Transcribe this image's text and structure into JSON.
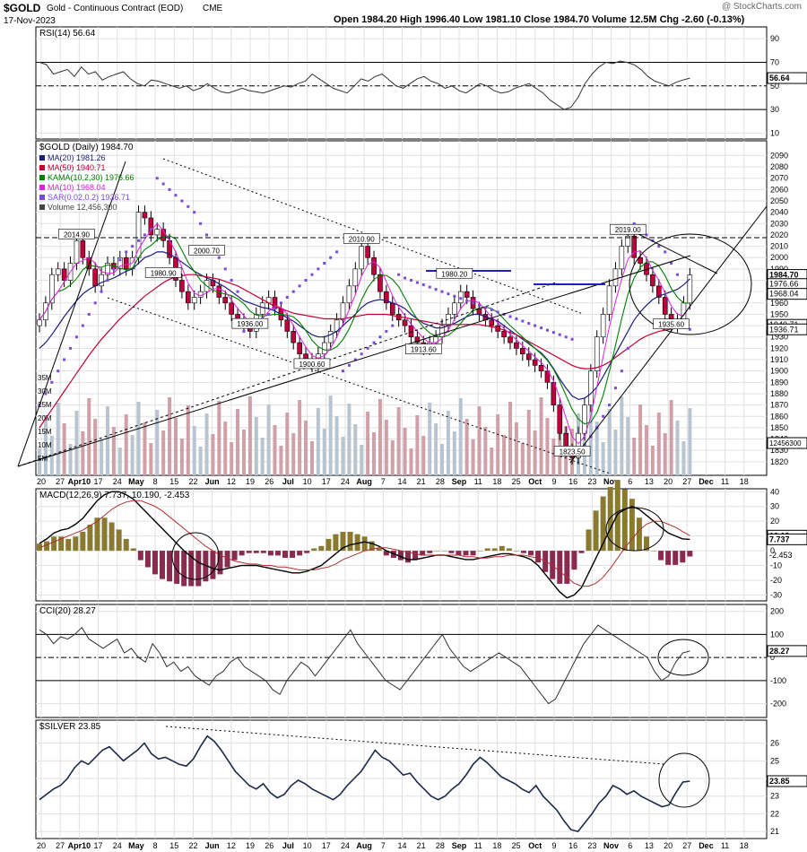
{
  "header": {
    "symbol": "$GOLD",
    "name": "Gold - Continuous Contract (EOD)",
    "exchange": "CME",
    "date": "17-Nov-2023",
    "watermark": "@ StockCharts.com",
    "quote": "Open 1984.20  High 1996.40  Low 1981.10  Close 1984.70  Volume 12.5M  Chg -2.60 (-0.13%)"
  },
  "colors": {
    "price_line": "#000000",
    "up_candle": "#ffffff",
    "down_candle": "#c0003c",
    "ma20": "#1c1c7c",
    "ma50": "#c00030",
    "kama": "#008000",
    "ma10": "#e020e0",
    "sar": "#7a4ad8",
    "volume_up": "#b8c4d0",
    "volume_down": "#cfa0a8",
    "macd_hist_pos": "#8a7a30",
    "macd_hist_neg": "#8a2a50",
    "grid": "#e0e0e0"
  },
  "chart_data": [
    {
      "id": "rsi",
      "type": "line",
      "label": "RSI(14) 56.64",
      "ylim": [
        5,
        100
      ],
      "yticks": [
        10,
        30,
        50,
        70,
        90
      ],
      "levels": [
        30,
        50,
        70
      ],
      "last_value": "56.64",
      "values": [
        70,
        68,
        60,
        62,
        64,
        58,
        66,
        60,
        62,
        55,
        58,
        60,
        62,
        56,
        52,
        50,
        55,
        54,
        52,
        50,
        48,
        50,
        46,
        48,
        52,
        48,
        45,
        44,
        46,
        48,
        46,
        45,
        44,
        46,
        48,
        50,
        49,
        52,
        54,
        60,
        56,
        52,
        48,
        46,
        44,
        50,
        56,
        54,
        58,
        60,
        55,
        50,
        48,
        52,
        56,
        58,
        54,
        52,
        48,
        50,
        46,
        44,
        48,
        52,
        50,
        46,
        44,
        45,
        48,
        50,
        52,
        48,
        44,
        38,
        34,
        30,
        32,
        40,
        52,
        60,
        66,
        70,
        69,
        71,
        70,
        68,
        64,
        58,
        54,
        52,
        50,
        53,
        55,
        56.64
      ]
    },
    {
      "id": "price",
      "type": "line",
      "label": "$GOLD (Daily) 1984.70",
      "ylim": [
        1808,
        2103
      ],
      "yticks": [
        1820,
        1830,
        1840,
        1850,
        1860,
        1870,
        1880,
        1890,
        1900,
        1910,
        1920,
        1930,
        1940,
        1950,
        1960,
        1970,
        1980,
        1990,
        2000,
        2010,
        2020,
        2030,
        2040,
        2050,
        2060,
        2070,
        2080,
        2090
      ],
      "legend": [
        "MA(20) 1981.26",
        "MA(50) 1940.71",
        "KAMA(10,2,30) 1976.66",
        "MA(10) 1968.04",
        "SAR(0.02,0.2) 1936.71",
        "Volume 12,456,300"
      ],
      "close": [
        1945,
        1960,
        1985,
        1990,
        1980,
        1995,
        2014.9,
        2000,
        1990,
        1975,
        1985,
        1995,
        1990,
        2000,
        1990,
        2000,
        2040,
        2035,
        2020,
        2025,
        2015,
        2000,
        1980,
        1970,
        1960,
        1965,
        1970,
        1980,
        1975,
        1965,
        1960,
        1950,
        1945,
        1940,
        1935,
        1950,
        1960,
        1965,
        1955,
        1945,
        1935,
        1925,
        1915,
        1910,
        1905,
        1915,
        1925,
        1935,
        1945,
        1960,
        1975,
        1990,
        2010,
        2000,
        1985,
        1970,
        1960,
        1950,
        1945,
        1940,
        1930,
        1925,
        1920,
        1925,
        1930,
        1940,
        1950,
        1960,
        1970,
        1965,
        1955,
        1950,
        1945,
        1940,
        1935,
        1930,
        1925,
        1920,
        1915,
        1910,
        1905,
        1900,
        1890,
        1870,
        1845,
        1830,
        1823.5,
        1845,
        1870,
        1900,
        1930,
        1950,
        1975,
        1990,
        2010,
        2019,
        2000,
        1995,
        1985,
        1975,
        1965,
        1950,
        1940,
        1945,
        1960,
        1984.7
      ],
      "ma20": [
        1920,
        1925,
        1932,
        1940,
        1948,
        1955,
        1962,
        1968,
        1972,
        1975,
        1978,
        1980,
        1982,
        1985,
        1988,
        1990,
        1995,
        2000,
        2002,
        2005,
        2005,
        2003,
        2000,
        1996,
        1992,
        1988,
        1985,
        1982,
        1980,
        1977,
        1974,
        1970,
        1966,
        1962,
        1960,
        1958,
        1956,
        1955,
        1953,
        1950,
        1947,
        1944,
        1940,
        1936,
        1932,
        1930,
        1930,
        1932,
        1935,
        1940,
        1945,
        1950,
        1956,
        1960,
        1962,
        1963,
        1962,
        1960,
        1958,
        1955,
        1950,
        1946,
        1942,
        1940,
        1938,
        1938,
        1940,
        1942,
        1945,
        1948,
        1950,
        1950,
        1948,
        1946,
        1944,
        1940,
        1936,
        1932,
        1928,
        1924,
        1920,
        1916,
        1910,
        1902,
        1893,
        1885,
        1878,
        1875,
        1876,
        1880,
        1886,
        1895,
        1905,
        1915,
        1925,
        1935,
        1945,
        1952,
        1958,
        1963,
        1966,
        1968,
        1970,
        1972,
        1976,
        1981.26
      ],
      "ma50": [
        1850,
        1858,
        1866,
        1874,
        1882,
        1890,
        1898,
        1906,
        1914,
        1921,
        1928,
        1934,
        1940,
        1946,
        1951,
        1956,
        1961,
        1966,
        1970,
        1974,
        1978,
        1981,
        1983,
        1984,
        1985,
        1985,
        1984,
        1983,
        1982,
        1981,
        1979,
        1977,
        1975,
        1972,
        1969,
        1966,
        1963,
        1960,
        1957,
        1955,
        1953,
        1951,
        1950,
        1949,
        1948,
        1947,
        1946,
        1946,
        1946,
        1946,
        1947,
        1948,
        1949,
        1950,
        1950,
        1950,
        1950,
        1949,
        1948,
        1947,
        1946,
        1945,
        1944,
        1943,
        1942,
        1941,
        1941,
        1941,
        1941,
        1941,
        1941,
        1941,
        1940,
        1939,
        1938,
        1936,
        1934,
        1932,
        1929,
        1926,
        1923,
        1920,
        1917,
        1914,
        1911,
        1908,
        1905,
        1903,
        1902,
        1902,
        1903,
        1905,
        1908,
        1912,
        1916,
        1920,
        1924,
        1928,
        1931,
        1933,
        1935,
        1936,
        1937,
        1938,
        1939,
        1940.71
      ],
      "sar": [
        1870,
        1880,
        1890,
        1900,
        1910,
        1920,
        1930,
        1940,
        1950,
        1960,
        1970,
        1980,
        1990,
        1998,
        2005,
        2010,
        2015,
        2020,
        2025,
        2070,
        2065,
        2060,
        2055,
        2050,
        2045,
        2040,
        2030,
        2020,
        2010,
        2000,
        1990,
        1980,
        1970,
        1935,
        1938,
        1942,
        1946,
        1950,
        1955,
        1960,
        1965,
        1970,
        1975,
        1980,
        1985,
        1990,
        1995,
        2000,
        2005,
        1900,
        1905,
        1910,
        1915,
        1920,
        1925,
        1930,
        1935,
        1940,
        1985,
        1982,
        1980,
        1978,
        1976,
        1974,
        1972,
        1970,
        1968,
        1966,
        1964,
        1962,
        1960,
        1958,
        1956,
        1954,
        1952,
        1950,
        1948,
        1946,
        1944,
        1942,
        1940,
        1938,
        1936,
        1934,
        1932,
        1930,
        1928,
        1830,
        1835,
        1842,
        1850,
        1860,
        1870,
        1885,
        1900,
        1920,
        2030,
        2025,
        2020,
        2015,
        2010,
        2005,
        1995,
        1985,
        1940,
        1936.71
      ]
    },
    {
      "id": "macd",
      "type": "line",
      "label": "MACD(12,26,9) 7.737, 10.190, -2.453",
      "ylim": [
        -34,
        42
      ],
      "yticks": [
        -30,
        -20,
        -10,
        0,
        10,
        20,
        30,
        40
      ],
      "macd": [
        5,
        8,
        12,
        14,
        15,
        18,
        22,
        28,
        34,
        38,
        40,
        40,
        38,
        35,
        30,
        25,
        20,
        15,
        10,
        5,
        0,
        -4,
        -8,
        -10,
        -12,
        -13,
        -12,
        -11,
        -10,
        -10,
        -10,
        -11,
        -12,
        -13,
        -14,
        -15,
        -15,
        -14,
        -12,
        -10,
        -6,
        -2,
        2,
        4,
        5,
        6,
        5,
        3,
        0,
        -2,
        -4,
        -6,
        -6,
        -5,
        -4,
        -3,
        -3,
        -4,
        -5,
        -6,
        -6,
        -5,
        -4,
        -3,
        -2,
        -2,
        -3,
        -4,
        -6,
        -10,
        -16,
        -22,
        -28,
        -32,
        -30,
        -25,
        -15,
        -5,
        5,
        15,
        25,
        28,
        30,
        28,
        24,
        20,
        16,
        12,
        10,
        8,
        7.737
      ],
      "signal": [
        2,
        4,
        6,
        8,
        10,
        12,
        14,
        17,
        20,
        24,
        28,
        31,
        33,
        34,
        34,
        32,
        30,
        27,
        23,
        19,
        15,
        11,
        7,
        3,
        0,
        -3,
        -5,
        -7,
        -8,
        -9,
        -9,
        -10,
        -10,
        -11,
        -11,
        -12,
        -13,
        -13,
        -13,
        -12,
        -11,
        -9,
        -6,
        -4,
        -2,
        0,
        1,
        2,
        2,
        1,
        0,
        -1,
        -2,
        -3,
        -3,
        -3,
        -3,
        -3,
        -3,
        -4,
        -4,
        -5,
        -5,
        -4,
        -4,
        -3,
        -3,
        -3,
        -4,
        -5,
        -7,
        -10,
        -14,
        -18,
        -22,
        -24,
        -24,
        -22,
        -18,
        -12,
        -5,
        2,
        8,
        14,
        18,
        20,
        20,
        18,
        16,
        13,
        10.19
      ],
      "hist_last": "-2.453"
    },
    {
      "id": "cci",
      "type": "line",
      "label": "CCI(20) 28.27",
      "ylim": [
        -260,
        230
      ],
      "yticks": [
        -200,
        -100,
        0,
        100,
        200
      ],
      "levels": [
        -100,
        0,
        100
      ],
      "last_value": "28.27",
      "values": [
        120,
        100,
        60,
        90,
        80,
        100,
        130,
        80,
        60,
        40,
        60,
        80,
        20,
        40,
        0,
        -20,
        60,
        20,
        -40,
        -20,
        -60,
        -40,
        -80,
        -100,
        -120,
        -80,
        -60,
        -20,
        0,
        -40,
        -60,
        -80,
        -100,
        -140,
        -160,
        -100,
        -60,
        -20,
        -40,
        -80,
        -40,
        0,
        40,
        80,
        120,
        60,
        20,
        -20,
        -60,
        -100,
        -120,
        -140,
        -100,
        -60,
        -20,
        20,
        60,
        100,
        40,
        0,
        -40,
        -60,
        -40,
        -20,
        0,
        20,
        0,
        -20,
        -40,
        -80,
        -120,
        -160,
        -200,
        -180,
        -120,
        -60,
        0,
        60,
        100,
        140,
        120,
        100,
        80,
        60,
        40,
        20,
        0,
        -60,
        -100,
        -80,
        -20,
        20,
        28.27
      ]
    },
    {
      "id": "silver",
      "type": "line",
      "label": "$SILVER 23.85",
      "ylim": [
        20.6,
        27.3
      ],
      "yticks": [
        21,
        22,
        23,
        24,
        25,
        26
      ],
      "last_value": "23.85",
      "values": [
        22.8,
        23.1,
        23.4,
        23.6,
        24.0,
        24.6,
        25.0,
        24.8,
        25.2,
        25.6,
        25.8,
        25.4,
        25.0,
        25.3,
        25.6,
        26.0,
        25.4,
        25.1,
        25.2,
        25.0,
        24.8,
        24.7,
        25.1,
        25.8,
        26.4,
        26.1,
        25.6,
        25.0,
        24.4,
        24.0,
        23.6,
        23.4,
        23.7,
        23.2,
        22.9,
        23.1,
        23.6,
        23.9,
        23.7,
        23.4,
        23.2,
        23.0,
        22.8,
        23.1,
        23.6,
        24.0,
        24.4,
        25.0,
        25.6,
        25.2,
        25.0,
        24.6,
        24.2,
        24.3,
        23.8,
        23.4,
        23.0,
        22.8,
        23.0,
        23.4,
        23.7,
        24.2,
        24.8,
        25.2,
        24.9,
        24.5,
        24.1,
        23.9,
        23.7,
        23.4,
        23.2,
        23.6,
        23.0,
        22.6,
        22.2,
        21.6,
        21.1,
        21.0,
        21.5,
        22.0,
        22.6,
        23.0,
        23.6,
        23.4,
        23.1,
        23.3,
        23.0,
        22.8,
        22.6,
        22.4,
        22.5,
        23.2,
        23.8,
        23.85
      ]
    }
  ],
  "price_annotations": [
    {
      "text": "2014.90",
      "i": 6,
      "v": 2014.9
    },
    {
      "text": "2010.90",
      "i": 52,
      "v": 2010.9
    },
    {
      "text": "2000.70",
      "i": 27,
      "v": 2000.7
    },
    {
      "text": "1980.90",
      "i": 20,
      "v": 1980.9
    },
    {
      "text": "1936.00",
      "i": 34,
      "v": 1936.0
    },
    {
      "text": "1900.60",
      "i": 44,
      "v": 1900.6
    },
    {
      "text": "1980.20",
      "i": 67,
      "v": 1980.2
    },
    {
      "text": "1913.60",
      "i": 62,
      "v": 1913.6
    },
    {
      "text": "2019.00",
      "i": 95,
      "v": 2019.0
    },
    {
      "text": "1935.60",
      "i": 102,
      "v": 1935.6
    },
    {
      "text": "1823.50",
      "i": 86,
      "v": 1823.5
    }
  ],
  "price_axis_labels": [
    {
      "text": "1984.70",
      "v": 1984.7
    },
    {
      "text": "1976.66",
      "v": 1976.66
    },
    {
      "text": "1968.04",
      "v": 1968.04
    },
    {
      "text": "1940.71",
      "v": 1940.71
    },
    {
      "text": "1936.71",
      "v": 1936.71
    }
  ],
  "volume": {
    "yticks": [
      "35M",
      "30M",
      "25M",
      "20M",
      "15M",
      "10M",
      "5M"
    ],
    "last_label": "12456300"
  },
  "x_axis": {
    "labels": [
      "20",
      "27",
      "Apr10",
      "17",
      "24",
      "May",
      "8",
      "15",
      "22",
      "Jun",
      "12",
      "19",
      "26",
      "Jul",
      "10",
      "17",
      "24",
      "Aug",
      "7",
      "14",
      "21",
      "28",
      "Sep",
      "11",
      "18",
      "25",
      "Oct",
      "9",
      "16",
      "23",
      "Nov",
      "6",
      "13",
      "20",
      "27",
      "Dec",
      "11",
      "18"
    ]
  }
}
